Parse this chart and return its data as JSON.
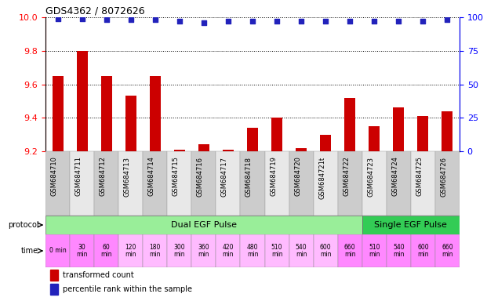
{
  "title": "GDS4362 / 8072626",
  "samples": [
    "GSM684710",
    "GSM684711",
    "GSM684712",
    "GSM684713",
    "GSM684714",
    "GSM684715",
    "GSM684716",
    "GSM684717",
    "GSM684718",
    "GSM684719",
    "GSM684720",
    "GSM684721t",
    "GSM684722",
    "GSM684723",
    "GSM684724",
    "GSM684725",
    "GSM684726"
  ],
  "transformed_count": [
    9.65,
    9.8,
    9.65,
    9.53,
    9.65,
    9.21,
    9.24,
    9.21,
    9.34,
    9.4,
    9.22,
    9.3,
    9.52,
    9.35,
    9.46,
    9.41,
    9.44
  ],
  "percentile_rank": [
    99,
    99,
    98,
    98,
    98,
    97,
    96,
    97,
    97,
    97,
    97,
    97,
    97,
    97,
    97,
    97,
    98
  ],
  "ylim_left": [
    9.2,
    10.0
  ],
  "ylim_right": [
    0,
    100
  ],
  "yticks_left": [
    9.2,
    9.4,
    9.6,
    9.8,
    10.0
  ],
  "yticks_right": [
    0,
    25,
    50,
    75,
    100
  ],
  "bar_color": "#cc0000",
  "dot_color": "#2222bb",
  "time_labels": [
    "0 min",
    "30\nmin",
    "60\nmin",
    "120\nmin",
    "180\nmin",
    "300\nmin",
    "360\nmin",
    "420\nmin",
    "480\nmin",
    "510\nmin",
    "540\nmin",
    "600\nmin",
    "660\nmin",
    "510\nmin",
    "540\nmin",
    "600\nmin",
    "660\nmin"
  ],
  "protocol_dual_label": "Dual EGF Pulse",
  "protocol_single_label": "Single EGF Pulse",
  "protocol_dual_color": "#99ee99",
  "protocol_single_color": "#33cc55",
  "time_colors": [
    "#ff88ff",
    "#ff88ff",
    "#ff88ff",
    "#ffbbff",
    "#ffbbff",
    "#ffbbff",
    "#ffbbff",
    "#ffbbff",
    "#ffbbff",
    "#ffbbff",
    "#ffbbff",
    "#ffbbff",
    "#ff88ff",
    "#ff88ff",
    "#ff88ff",
    "#ff88ff",
    "#ff88ff"
  ],
  "legend_bar_label": "transformed count",
  "legend_dot_label": "percentile rank within the sample",
  "bar_color_legend": "#cc0000",
  "dot_color_legend": "#2222bb",
  "bar_width": 0.45,
  "dot_size": 18,
  "sample_bg_even": "#cccccc",
  "sample_bg_odd": "#e8e8e8"
}
